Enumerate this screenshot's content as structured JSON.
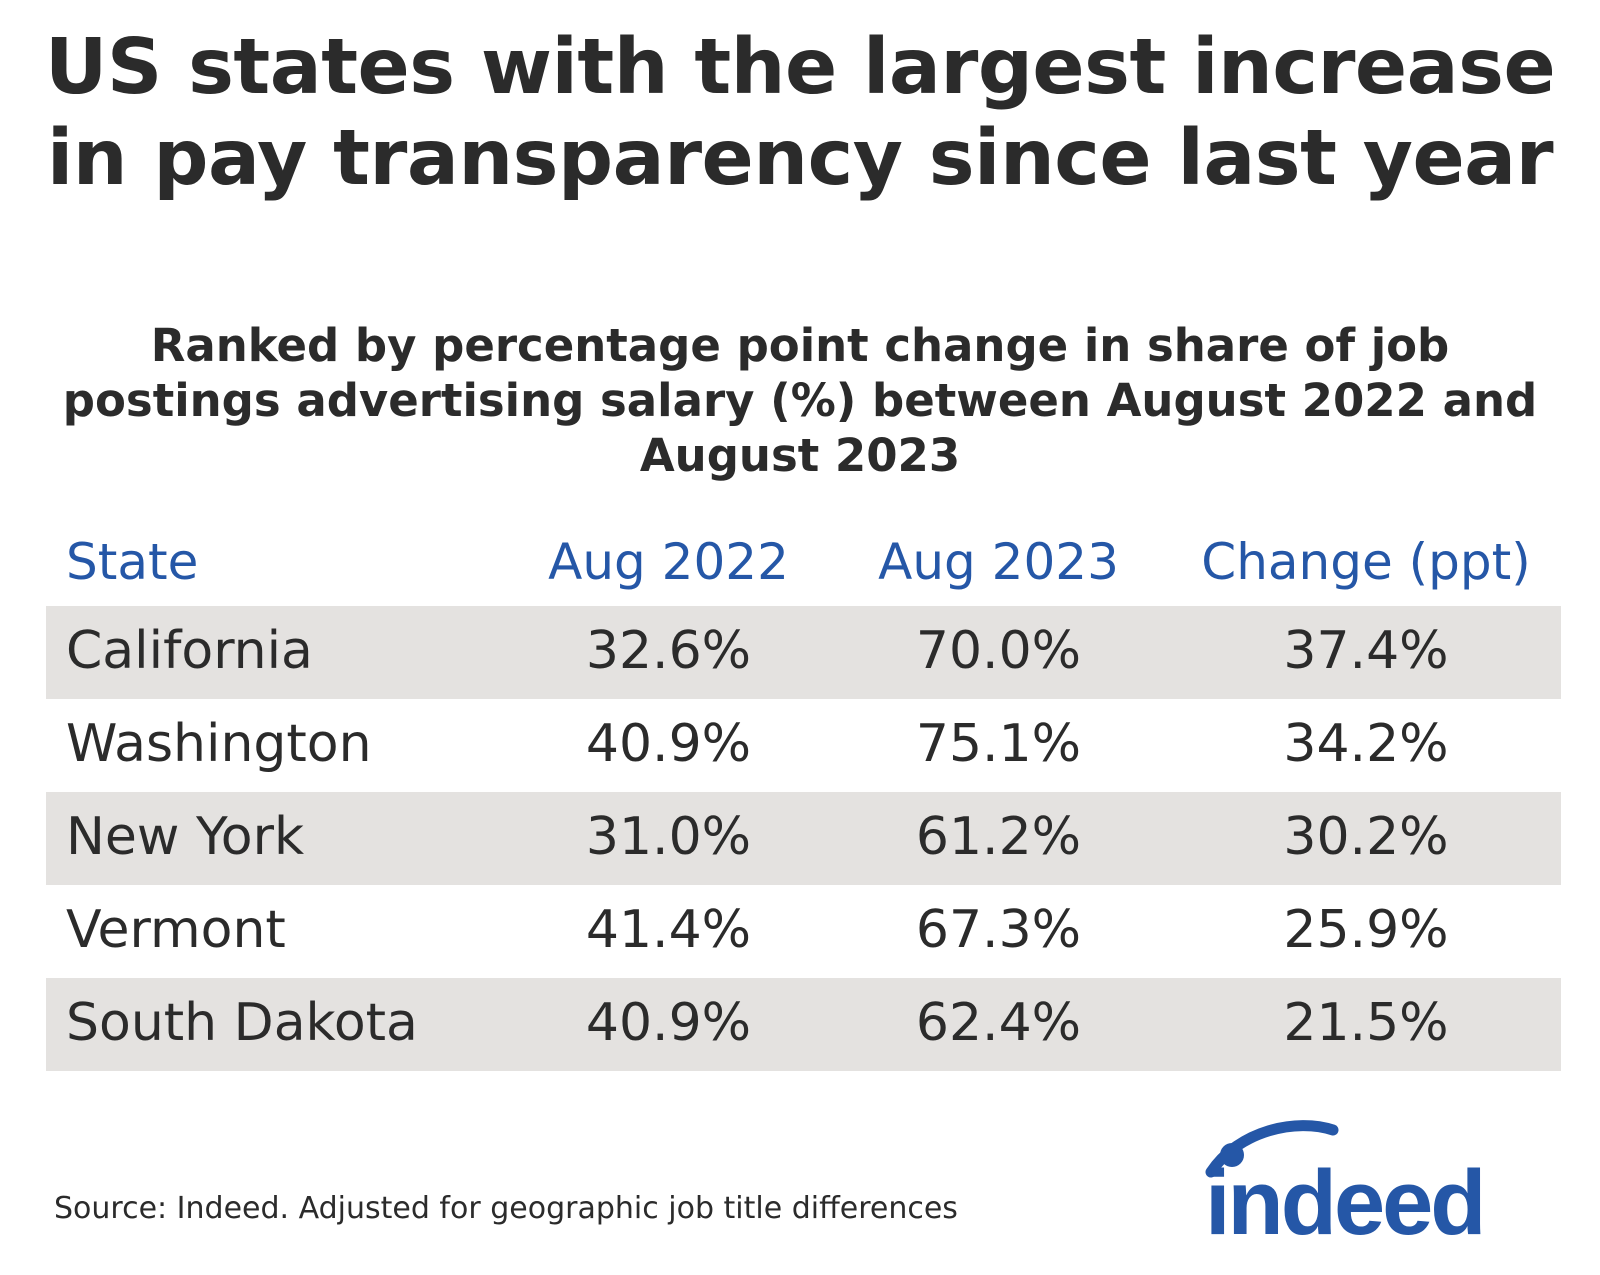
{
  "chart_data": {
    "type": "table",
    "title": "US states with the largest increase in pay transparency since last year",
    "subtitle": "Ranked by percentage point change in share of job postings advertising salary (%) between August 2022 and August 2023",
    "columns": [
      "State",
      "Aug 2022",
      "Aug 2023",
      "Change (ppt)"
    ],
    "rows": [
      {
        "state": "California",
        "aug_2022": "32.6%",
        "aug_2023": "70.0%",
        "change": "37.4%"
      },
      {
        "state": "Washington",
        "aug_2022": "40.9%",
        "aug_2023": "75.1%",
        "change": "34.2%"
      },
      {
        "state": "New York",
        "aug_2022": "31.0%",
        "aug_2023": "61.2%",
        "change": "30.2%"
      },
      {
        "state": "Vermont",
        "aug_2022": "41.4%",
        "aug_2023": "67.3%",
        "change": "25.9%"
      },
      {
        "state": "South Dakota",
        "aug_2022": "40.9%",
        "aug_2023": "62.4%",
        "change": "21.5%"
      }
    ],
    "source": "Source: Indeed. Adjusted for geographic job title differences"
  },
  "logo": {
    "text": "indeed",
    "color": "#2557a7"
  },
  "colors": {
    "header_text": "#2557a7",
    "body_text": "#2b2b2b",
    "row_shade": "#e4e2e0"
  }
}
